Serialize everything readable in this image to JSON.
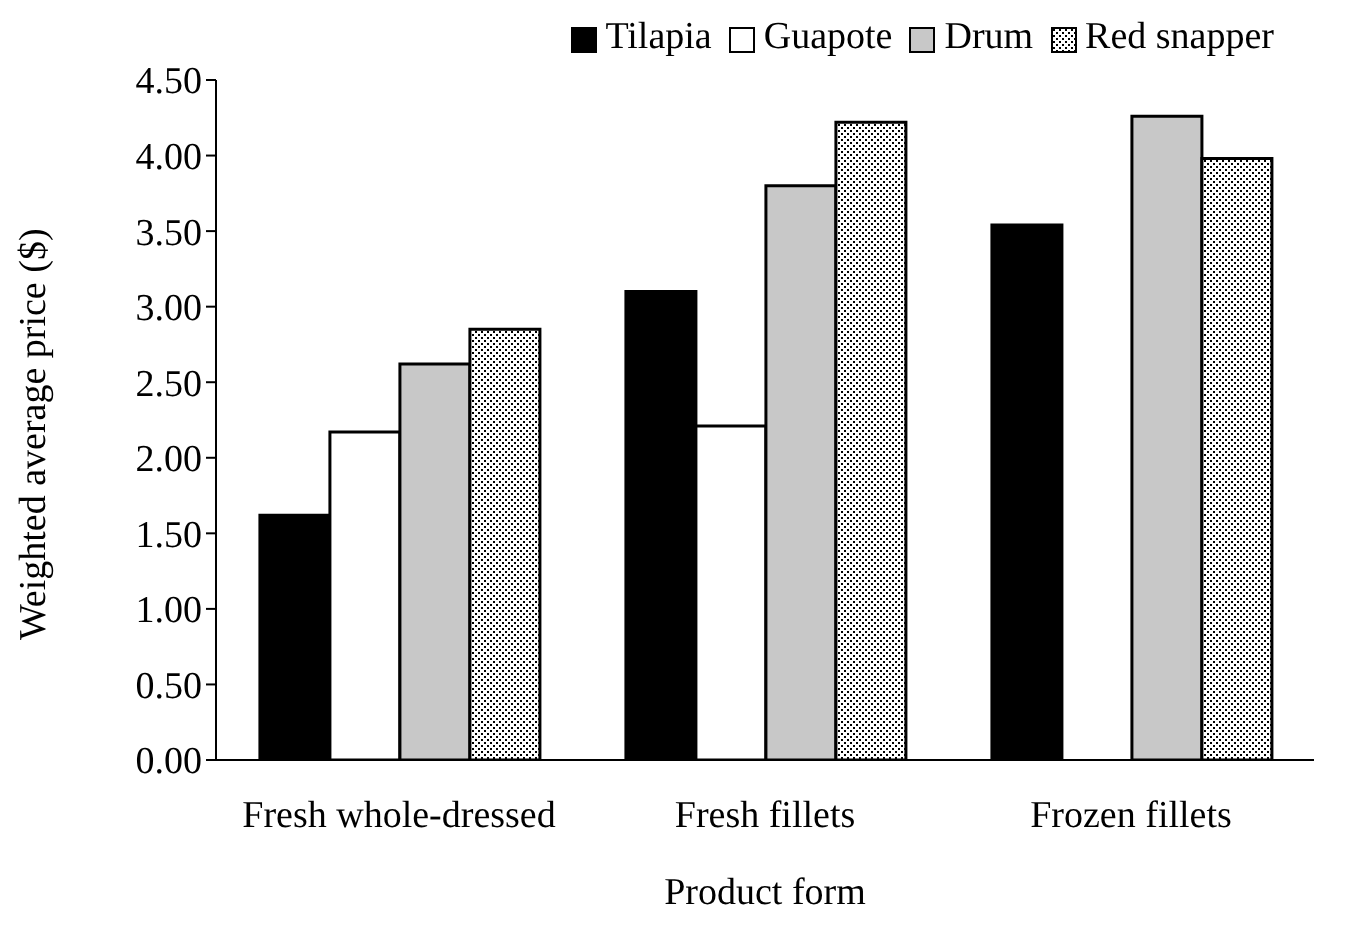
{
  "chart_data": {
    "type": "bar",
    "xlabel": "Product form",
    "ylabel": "Weighted average price ($)",
    "categories": [
      "Fresh whole-dressed",
      "Fresh fillets",
      "Frozen fillets"
    ],
    "series": [
      {
        "name": "Tilapia",
        "color": "#000000",
        "values": [
          1.62,
          3.1,
          3.54
        ]
      },
      {
        "name": "Guapote",
        "color": "#ffffff",
        "values": [
          2.17,
          2.21,
          null
        ]
      },
      {
        "name": "Drum",
        "color": "#c8c8c8",
        "values": [
          2.62,
          3.8,
          4.26
        ]
      },
      {
        "name": "Red snapper",
        "color": "#000000",
        "values": [
          2.85,
          4.22,
          3.98
        ]
      }
    ],
    "ylim": [
      0,
      4.5
    ],
    "yticks": [
      {
        "value": 0,
        "label": "0.00"
      },
      {
        "value": 0.5,
        "label": "0.50"
      },
      {
        "value": 1,
        "label": "1.00"
      },
      {
        "value": 1.5,
        "label": "1.50"
      },
      {
        "value": 2,
        "label": "2.00"
      },
      {
        "value": 2.5,
        "label": "2.50"
      },
      {
        "value": 3,
        "label": "3.00"
      },
      {
        "value": 3.5,
        "label": "3.50"
      },
      {
        "value": 4,
        "label": "4.00"
      },
      {
        "value": 4.5,
        "label": "4.50"
      }
    ],
    "grid": false,
    "legend": "top right"
  }
}
